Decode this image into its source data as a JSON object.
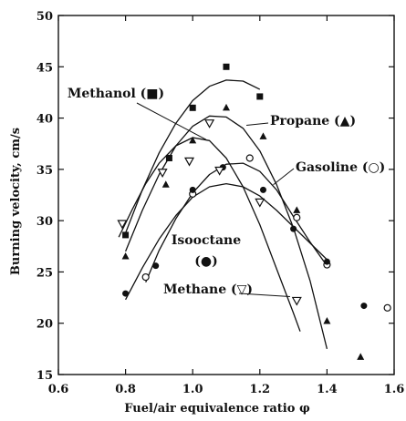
{
  "chart_data": {
    "type": "scatter",
    "title": "",
    "xlabel": "Fuel/air equivalence ratio φ",
    "ylabel": "Burning velocity, cm/s",
    "xlim": [
      0.6,
      1.6
    ],
    "ylim": [
      15,
      50
    ],
    "xticks": [
      0.6,
      0.8,
      1.0,
      1.2,
      1.4,
      1.6
    ],
    "yticks": [
      15,
      20,
      25,
      30,
      35,
      40,
      45,
      50
    ],
    "xtick_labels": [
      "0.6",
      "0.8",
      "1.0",
      "1.2",
      "1.4",
      "1.6"
    ],
    "ytick_labels": [
      "15",
      "20",
      "25",
      "30",
      "35",
      "40",
      "45",
      "50"
    ],
    "grid": false,
    "legend": "annotations",
    "series": [
      {
        "name": "Methanol (■)",
        "marker": "square",
        "points": [
          [
            0.8,
            28.6
          ],
          [
            0.93,
            36.1
          ],
          [
            1.0,
            41.0
          ],
          [
            1.1,
            45.0
          ],
          [
            1.2,
            42.1
          ]
        ],
        "curve": [
          [
            0.8,
            28.8
          ],
          [
            0.85,
            33.0
          ],
          [
            0.9,
            36.6
          ],
          [
            0.95,
            39.5
          ],
          [
            1.0,
            41.7
          ],
          [
            1.05,
            43.1
          ],
          [
            1.1,
            43.7
          ],
          [
            1.15,
            43.6
          ],
          [
            1.2,
            42.8
          ]
        ]
      },
      {
        "name": "Propane (▲)",
        "marker": "triangle",
        "points": [
          [
            0.8,
            26.5
          ],
          [
            0.92,
            33.5
          ],
          [
            1.0,
            37.8
          ],
          [
            1.1,
            41.0
          ],
          [
            1.21,
            38.2
          ],
          [
            1.31,
            31.0
          ],
          [
            1.4,
            20.2
          ],
          [
            1.5,
            16.7
          ]
        ],
        "curve": [
          [
            0.8,
            27.0
          ],
          [
            0.85,
            31.0
          ],
          [
            0.9,
            34.5
          ],
          [
            0.95,
            37.3
          ],
          [
            1.0,
            39.2
          ],
          [
            1.05,
            40.2
          ],
          [
            1.1,
            40.1
          ],
          [
            1.15,
            39.0
          ],
          [
            1.2,
            36.8
          ],
          [
            1.25,
            33.5
          ],
          [
            1.3,
            29.3
          ],
          [
            1.35,
            24.1
          ],
          [
            1.4,
            17.5
          ]
        ]
      },
      {
        "name": "Gasoline (○)",
        "marker": "circle-open",
        "points": [
          [
            0.86,
            24.5
          ],
          [
            1.0,
            32.6
          ],
          [
            1.17,
            36.1
          ],
          [
            1.31,
            30.3
          ],
          [
            1.4,
            25.7
          ],
          [
            1.58,
            21.5
          ]
        ],
        "curve": [
          [
            0.86,
            24.0
          ],
          [
            0.9,
            27.1
          ],
          [
            0.95,
            30.2
          ],
          [
            1.0,
            32.7
          ],
          [
            1.05,
            34.5
          ],
          [
            1.1,
            35.5
          ],
          [
            1.15,
            35.6
          ],
          [
            1.2,
            34.8
          ],
          [
            1.25,
            33.0
          ],
          [
            1.3,
            30.4
          ],
          [
            1.35,
            27.9
          ],
          [
            1.4,
            25.6
          ]
        ]
      },
      {
        "name": "Isooctane (●)",
        "marker": "circle-filled",
        "points": [
          [
            0.8,
            22.9
          ],
          [
            0.89,
            25.6
          ],
          [
            1.0,
            33.0
          ],
          [
            1.09,
            35.2
          ],
          [
            1.21,
            33.0
          ],
          [
            1.3,
            29.2
          ],
          [
            1.4,
            26.0
          ],
          [
            1.51,
            21.7
          ]
        ],
        "curve": [
          [
            0.8,
            22.3
          ],
          [
            0.85,
            25.4
          ],
          [
            0.9,
            28.2
          ],
          [
            0.95,
            30.5
          ],
          [
            1.0,
            32.3
          ],
          [
            1.05,
            33.3
          ],
          [
            1.1,
            33.6
          ],
          [
            1.15,
            33.3
          ],
          [
            1.2,
            32.4
          ],
          [
            1.25,
            31.0
          ],
          [
            1.3,
            29.4
          ],
          [
            1.35,
            27.8
          ],
          [
            1.4,
            26.2
          ]
        ]
      },
      {
        "name": "Methane (▽)",
        "marker": "triangle-down-open",
        "points": [
          [
            0.79,
            29.7
          ],
          [
            0.91,
            34.7
          ],
          [
            0.99,
            35.8
          ],
          [
            1.05,
            39.5
          ],
          [
            1.08,
            34.9
          ],
          [
            1.2,
            31.8
          ],
          [
            1.31,
            22.2
          ]
        ],
        "curve": [
          [
            0.78,
            28.4
          ],
          [
            0.82,
            31.1
          ],
          [
            0.86,
            33.6
          ],
          [
            0.9,
            35.6
          ],
          [
            0.95,
            37.3
          ],
          [
            1.0,
            38.1
          ],
          [
            1.05,
            37.8
          ],
          [
            1.1,
            36.1
          ],
          [
            1.15,
            33.3
          ],
          [
            1.2,
            29.6
          ],
          [
            1.25,
            25.3
          ],
          [
            1.3,
            21.0
          ],
          [
            1.32,
            19.2
          ]
        ]
      }
    ],
    "annotations": [
      {
        "text": "Methanol (■)",
        "series": 0,
        "target": [
          1.04,
          37.9
        ]
      },
      {
        "text": "Propane (▲)",
        "series": 1,
        "target": [
          1.16,
          39.3
        ]
      },
      {
        "text": "Gasoline (○)",
        "series": 2,
        "target": [
          1.24,
          33.5
        ]
      },
      {
        "text": "Isooctane",
        "series": 3,
        "target": null
      },
      {
        "text": "(●)",
        "series": 3,
        "target": null
      },
      {
        "text": "Methane (▽)",
        "series": 4,
        "target": [
          1.29,
          22.6
        ]
      }
    ]
  }
}
